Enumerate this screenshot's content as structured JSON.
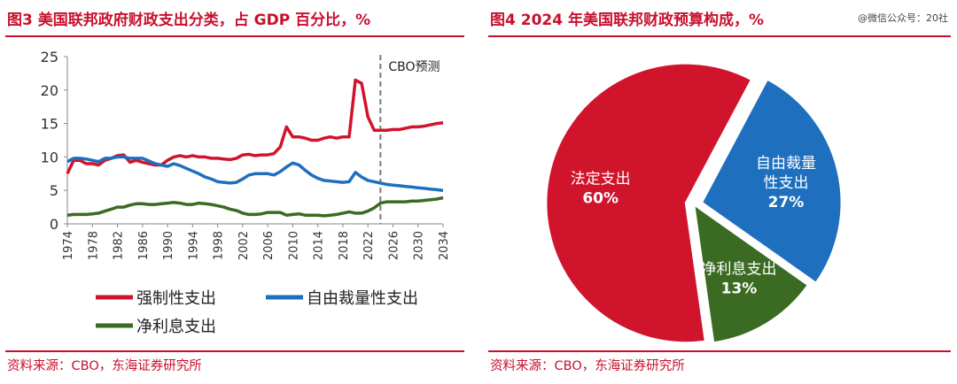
{
  "left": {
    "title": "图3  美国联邦政府财政支出分类，占 GDP 百分比，%",
    "source": "资料来源：CBO，东海证券研究所",
    "cbo_label": "CBO预测"
  },
  "right": {
    "title": "图4  2024 年美国联邦财政预算构成，%",
    "source": "资料来源：CBO，东海证券研究所",
    "watermark": "@微信公众号：20社"
  },
  "colors": {
    "red": "#d0142c",
    "blue": "#1f6fbf",
    "green": "#3b6b22",
    "accent": "#c8102e"
  },
  "chart_data": [
    {
      "type": "line",
      "title": "美国联邦政府财政支出分类，占 GDP 百分比，%",
      "ylim": [
        0,
        25
      ],
      "yticks": [
        0,
        5,
        10,
        15,
        20,
        25
      ],
      "xlim": [
        1974,
        2034
      ],
      "xticks": [
        1974,
        1978,
        1982,
        1986,
        1990,
        1994,
        1998,
        2002,
        2006,
        2010,
        2014,
        2018,
        2022,
        2026,
        2030,
        2034
      ],
      "forecast_start": 2024,
      "legend_position": "bottom",
      "grid": false,
      "x": [
        1974,
        1975,
        1976,
        1977,
        1978,
        1979,
        1980,
        1981,
        1982,
        1983,
        1984,
        1985,
        1986,
        1987,
        1988,
        1989,
        1990,
        1991,
        1992,
        1993,
        1994,
        1995,
        1996,
        1997,
        1998,
        1999,
        2000,
        2001,
        2002,
        2003,
        2004,
        2005,
        2006,
        2007,
        2008,
        2009,
        2010,
        2011,
        2012,
        2013,
        2014,
        2015,
        2016,
        2017,
        2018,
        2019,
        2020,
        2021,
        2022,
        2023,
        2024,
        2025,
        2026,
        2027,
        2028,
        2029,
        2030,
        2031,
        2032,
        2033,
        2034
      ],
      "series": [
        {
          "name": "强制性支出",
          "color": "#d0142c",
          "values": [
            7.5,
            9.5,
            9.5,
            9.0,
            9.0,
            8.8,
            9.5,
            9.8,
            10.2,
            10.3,
            9.2,
            9.5,
            9.2,
            9.0,
            8.8,
            8.8,
            9.5,
            10.0,
            10.2,
            10.0,
            10.2,
            10.0,
            10.0,
            9.8,
            9.8,
            9.7,
            9.6,
            9.8,
            10.3,
            10.4,
            10.2,
            10.3,
            10.3,
            10.5,
            11.5,
            14.5,
            13.0,
            13.0,
            12.8,
            12.5,
            12.5,
            12.8,
            13.0,
            12.8,
            13.0,
            13.0,
            21.5,
            21.0,
            16.0,
            14.0,
            14.0,
            14.0,
            14.1,
            14.1,
            14.3,
            14.5,
            14.5,
            14.6,
            14.8,
            15.0,
            15.1
          ]
        },
        {
          "name": "自由裁量性支出",
          "color": "#1f6fbf",
          "values": [
            9.3,
            9.8,
            9.8,
            9.7,
            9.5,
            9.3,
            9.8,
            9.8,
            10.0,
            10.0,
            9.8,
            9.8,
            9.8,
            9.4,
            9.0,
            8.8,
            8.6,
            9.0,
            8.7,
            8.3,
            7.9,
            7.5,
            7.0,
            6.7,
            6.3,
            6.2,
            6.1,
            6.2,
            6.7,
            7.3,
            7.5,
            7.5,
            7.5,
            7.3,
            7.8,
            8.5,
            9.1,
            8.8,
            8.0,
            7.3,
            6.8,
            6.5,
            6.4,
            6.3,
            6.2,
            6.3,
            7.7,
            7.0,
            6.5,
            6.3,
            6.1,
            5.9,
            5.8,
            5.7,
            5.6,
            5.5,
            5.4,
            5.3,
            5.2,
            5.1,
            5.0
          ]
        },
        {
          "name": "净利息支出",
          "color": "#3b6b22",
          "values": [
            1.3,
            1.4,
            1.4,
            1.4,
            1.5,
            1.6,
            1.9,
            2.2,
            2.5,
            2.5,
            2.8,
            3.0,
            3.0,
            2.9,
            2.9,
            3.0,
            3.1,
            3.2,
            3.1,
            2.9,
            2.9,
            3.1,
            3.0,
            2.9,
            2.7,
            2.5,
            2.2,
            2.0,
            1.6,
            1.4,
            1.4,
            1.5,
            1.7,
            1.7,
            1.7,
            1.3,
            1.4,
            1.5,
            1.3,
            1.3,
            1.3,
            1.2,
            1.3,
            1.4,
            1.6,
            1.8,
            1.6,
            1.6,
            1.9,
            2.4,
            3.1,
            3.3,
            3.3,
            3.3,
            3.3,
            3.4,
            3.4,
            3.5,
            3.6,
            3.7,
            3.9
          ]
        }
      ]
    },
    {
      "type": "pie",
      "title": "2024 年美国联邦财政预算构成，%",
      "slices": [
        {
          "label": "自由裁量性支出",
          "value": 27,
          "color": "#1f6fbf",
          "label_lines": [
            "自由裁量",
            "性支出",
            "27%"
          ],
          "exploded": true
        },
        {
          "label": "净利息支出",
          "value": 13,
          "color": "#3b6b22",
          "label_lines": [
            "净利息支出",
            "13%"
          ],
          "exploded": false
        },
        {
          "label": "法定支出",
          "value": 60,
          "color": "#d0142c",
          "label_lines": [
            "法定支出",
            "60%"
          ],
          "exploded": true
        }
      ]
    }
  ]
}
